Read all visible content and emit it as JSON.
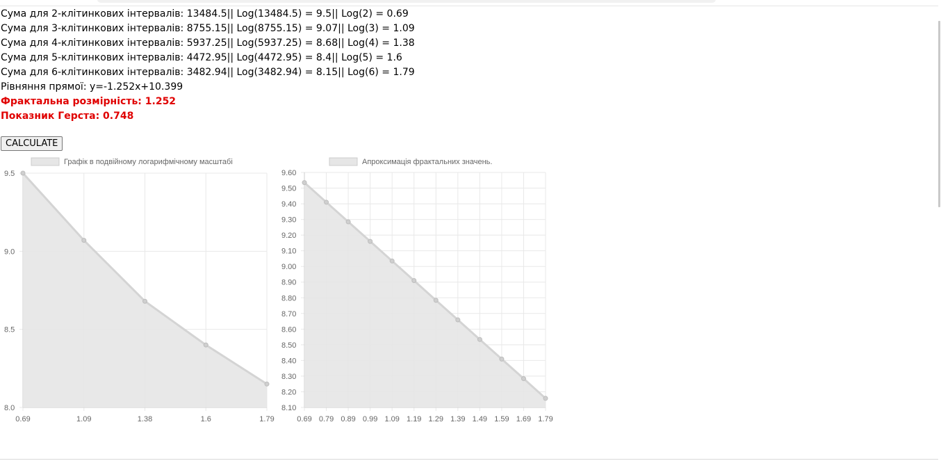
{
  "results": {
    "lines": [
      "Сума для 2-клітинкових інтервалів: 13484.5|| Log(13484.5) = 9.5|| Log(2) = 0.69",
      "Сума для 3-клітинкових інтервалів: 8755.15|| Log(8755.15) = 9.07|| Log(3) = 1.09",
      "Сума для 4-клітинкових інтервалів: 5937.25|| Log(5937.25) = 8.68|| Log(4) = 1.38",
      "Сума для 5-клітинкових інтервалів: 4472.95|| Log(4472.95) = 8.4|| Log(5) = 1.6",
      "Сума для 6-клітинкових інтервалів: 3482.94|| Log(3482.94) = 8.15|| Log(6) = 1.79",
      "Рівняння прямої: y=-1.252x+10.399"
    ],
    "fractal_dimension": "Фрактальна розмірність: 1.252",
    "hurst_exponent": "Показник Герста: 0.748"
  },
  "calculate_button": "CALCULATE",
  "colors": {
    "fill": "#e6e6e6",
    "line": "#d4d4d4",
    "point": "#cfcfcf",
    "grid": "#e8e8e8",
    "axis": "#666666",
    "highlight": "#e00000"
  },
  "chart_data": [
    {
      "type": "area",
      "legend": "Графік в подвійному логарифмічному масштабі",
      "legend_position": "top",
      "categories": [
        "0.69",
        "1.09",
        "1.38",
        "1.6",
        "1.79"
      ],
      "values": [
        9.5,
        9.07,
        8.68,
        8.4,
        8.15
      ],
      "ylim": [
        8.0,
        9.5
      ],
      "yticks": [
        "9.5",
        "9.0",
        "8.5",
        "8.0"
      ],
      "grid": true
    },
    {
      "type": "area",
      "legend": "Апроксимація фрактальних значень.",
      "legend_position": "top",
      "categories": [
        "0.69",
        "0.79",
        "0.89",
        "0.99",
        "1.09",
        "1.19",
        "1.29",
        "1.39",
        "1.49",
        "1.59",
        "1.69",
        "1.79"
      ],
      "values": [
        9.535,
        9.41,
        9.285,
        9.16,
        9.035,
        8.91,
        8.784,
        8.659,
        8.534,
        8.409,
        8.284,
        8.158
      ],
      "ylim": [
        8.1,
        9.6
      ],
      "yticks": [
        "9.60",
        "9.50",
        "9.40",
        "9.30",
        "9.20",
        "9.10",
        "9.00",
        "8.90",
        "8.80",
        "8.70",
        "8.60",
        "8.50",
        "8.40",
        "8.30",
        "8.20",
        "8.10"
      ],
      "grid": true
    }
  ]
}
